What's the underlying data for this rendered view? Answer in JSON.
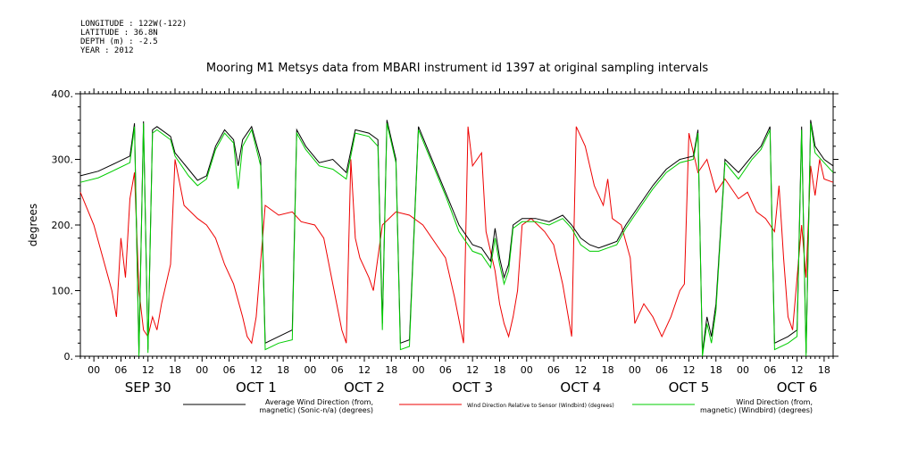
{
  "meta": {
    "longitude": "LONGITUDE : 122W(-122)",
    "latitude": "LATITUDE : 36.8N",
    "depth": "DEPTH (m) : -2.5",
    "year": "YEAR : 2012"
  },
  "chart_data": {
    "type": "line",
    "title": "Mooring M1 Metsys data from MBARI instrument id 1397 at original sampling intervals",
    "ylabel": "degrees",
    "ylim": [
      0,
      400
    ],
    "yticks": [
      "0.",
      "100.",
      "200.",
      "300.",
      "400."
    ],
    "xlim_hours": [
      -3,
      164
    ],
    "hour_tick_labels": [
      "00",
      "06",
      "12",
      "18",
      "00",
      "06",
      "12",
      "18",
      "00",
      "06",
      "12",
      "18",
      "00",
      "06",
      "12",
      "18",
      "00",
      "06",
      "12",
      "18",
      "00",
      "06",
      "12",
      "18",
      "00",
      "06",
      "12",
      "18"
    ],
    "day_labels": [
      "SEP 30",
      "OCT  1",
      "OCT  2",
      "OCT  3",
      "OCT  4",
      "OCT  5",
      "OCT  6"
    ],
    "series": [
      {
        "name": "Average Wind Direction (from, magnetic) (Sonic-n/a) (degrees)",
        "legend_lines": [
          "Average Wind Direction (from,",
          "magnetic) (Sonic-n/a) (degrees)"
        ],
        "color": "#000000",
        "points": [
          [
            -3,
            275
          ],
          [
            1,
            282
          ],
          [
            5,
            295
          ],
          [
            8,
            305
          ],
          [
            9,
            355
          ],
          [
            10,
            5
          ],
          [
            11,
            358
          ],
          [
            12,
            10
          ],
          [
            13,
            345
          ],
          [
            14,
            350
          ],
          [
            17,
            335
          ],
          [
            18,
            310
          ],
          [
            21,
            285
          ],
          [
            23,
            268
          ],
          [
            25,
            275
          ],
          [
            27,
            320
          ],
          [
            29,
            345
          ],
          [
            31,
            330
          ],
          [
            32,
            290
          ],
          [
            33,
            330
          ],
          [
            35,
            350
          ],
          [
            37,
            300
          ],
          [
            38,
            20
          ],
          [
            41,
            30
          ],
          [
            44,
            40
          ],
          [
            45,
            345
          ],
          [
            47,
            320
          ],
          [
            50,
            295
          ],
          [
            53,
            300
          ],
          [
            56,
            280
          ],
          [
            58,
            345
          ],
          [
            61,
            340
          ],
          [
            63,
            330
          ],
          [
            64,
            50
          ],
          [
            65,
            360
          ],
          [
            67,
            300
          ],
          [
            68,
            20
          ],
          [
            70,
            25
          ],
          [
            72,
            350
          ],
          [
            75,
            300
          ],
          [
            78,
            250
          ],
          [
            81,
            200
          ],
          [
            84,
            170
          ],
          [
            86,
            165
          ],
          [
            88,
            145
          ],
          [
            89,
            195
          ],
          [
            90,
            150
          ],
          [
            91,
            120
          ],
          [
            92,
            140
          ],
          [
            93,
            200
          ],
          [
            95,
            210
          ],
          [
            98,
            210
          ],
          [
            101,
            205
          ],
          [
            104,
            215
          ],
          [
            106,
            200
          ],
          [
            108,
            180
          ],
          [
            110,
            170
          ],
          [
            112,
            165
          ],
          [
            114,
            170
          ],
          [
            116,
            175
          ],
          [
            118,
            200
          ],
          [
            121,
            230
          ],
          [
            124,
            260
          ],
          [
            127,
            285
          ],
          [
            130,
            300
          ],
          [
            133,
            305
          ],
          [
            134,
            345
          ],
          [
            135,
            5
          ],
          [
            136,
            60
          ],
          [
            137,
            30
          ],
          [
            138,
            80
          ],
          [
            140,
            300
          ],
          [
            143,
            280
          ],
          [
            146,
            305
          ],
          [
            148,
            320
          ],
          [
            150,
            350
          ],
          [
            151,
            20
          ],
          [
            154,
            30
          ],
          [
            156,
            40
          ],
          [
            157,
            350
          ],
          [
            158,
            5
          ],
          [
            159,
            360
          ],
          [
            160,
            320
          ],
          [
            162,
            300
          ],
          [
            164,
            290
          ]
        ]
      },
      {
        "name": "Wind Direction Relative to Sensor (Windbird) (degrees)",
        "legend_lines": [
          "Wind Direction Relative to Sensor (Windbird) (degrees)"
        ],
        "color": "#ee0000",
        "points": [
          [
            -3,
            250
          ],
          [
            0,
            200
          ],
          [
            2,
            150
          ],
          [
            4,
            100
          ],
          [
            5,
            60
          ],
          [
            6,
            180
          ],
          [
            7,
            120
          ],
          [
            8,
            240
          ],
          [
            9,
            280
          ],
          [
            10,
            100
          ],
          [
            11,
            40
          ],
          [
            12,
            30
          ],
          [
            13,
            60
          ],
          [
            14,
            40
          ],
          [
            15,
            80
          ],
          [
            17,
            140
          ],
          [
            18,
            300
          ],
          [
            20,
            230
          ],
          [
            23,
            210
          ],
          [
            25,
            200
          ],
          [
            27,
            180
          ],
          [
            29,
            140
          ],
          [
            31,
            110
          ],
          [
            33,
            60
          ],
          [
            34,
            30
          ],
          [
            35,
            20
          ],
          [
            36,
            60
          ],
          [
            38,
            230
          ],
          [
            41,
            215
          ],
          [
            44,
            220
          ],
          [
            46,
            205
          ],
          [
            49,
            200
          ],
          [
            51,
            180
          ],
          [
            53,
            110
          ],
          [
            55,
            40
          ],
          [
            56,
            20
          ],
          [
            57,
            300
          ],
          [
            58,
            180
          ],
          [
            59,
            150
          ],
          [
            61,
            120
          ],
          [
            62,
            100
          ],
          [
            64,
            200
          ],
          [
            67,
            220
          ],
          [
            70,
            215
          ],
          [
            73,
            200
          ],
          [
            76,
            170
          ],
          [
            78,
            150
          ],
          [
            80,
            90
          ],
          [
            82,
            20
          ],
          [
            83,
            350
          ],
          [
            84,
            290
          ],
          [
            86,
            310
          ],
          [
            87,
            190
          ],
          [
            89,
            130
          ],
          [
            90,
            80
          ],
          [
            91,
            50
          ],
          [
            92,
            30
          ],
          [
            93,
            60
          ],
          [
            94,
            100
          ],
          [
            95,
            200
          ],
          [
            97,
            210
          ],
          [
            100,
            190
          ],
          [
            102,
            170
          ],
          [
            104,
            110
          ],
          [
            106,
            30
          ],
          [
            107,
            350
          ],
          [
            109,
            320
          ],
          [
            111,
            260
          ],
          [
            113,
            230
          ],
          [
            114,
            270
          ],
          [
            115,
            210
          ],
          [
            117,
            200
          ],
          [
            119,
            150
          ],
          [
            120,
            50
          ],
          [
            122,
            80
          ],
          [
            124,
            60
          ],
          [
            126,
            30
          ],
          [
            128,
            60
          ],
          [
            130,
            100
          ],
          [
            131,
            110
          ],
          [
            132,
            340
          ],
          [
            134,
            280
          ],
          [
            136,
            300
          ],
          [
            138,
            250
          ],
          [
            140,
            270
          ],
          [
            143,
            240
          ],
          [
            145,
            250
          ],
          [
            147,
            220
          ],
          [
            149,
            210
          ],
          [
            151,
            190
          ],
          [
            152,
            260
          ],
          [
            153,
            150
          ],
          [
            154,
            60
          ],
          [
            155,
            40
          ],
          [
            157,
            200
          ],
          [
            158,
            120
          ],
          [
            159,
            290
          ],
          [
            160,
            245
          ],
          [
            161,
            300
          ],
          [
            162,
            270
          ],
          [
            164,
            265
          ]
        ]
      },
      {
        "name": "Wind Direction (from, magnetic) (Windbird) (degrees)",
        "legend_lines": [
          "Wind Direction (from,",
          "magnetic) (Windbird) (degrees)"
        ],
        "color": "#00cc00",
        "points": [
          [
            -3,
            265
          ],
          [
            1,
            272
          ],
          [
            5,
            285
          ],
          [
            8,
            295
          ],
          [
            9,
            350
          ],
          [
            10,
            0
          ],
          [
            11,
            355
          ],
          [
            12,
            5
          ],
          [
            13,
            340
          ],
          [
            14,
            345
          ],
          [
            17,
            330
          ],
          [
            18,
            305
          ],
          [
            21,
            275
          ],
          [
            23,
            260
          ],
          [
            25,
            270
          ],
          [
            27,
            315
          ],
          [
            29,
            340
          ],
          [
            31,
            325
          ],
          [
            32,
            255
          ],
          [
            33,
            320
          ],
          [
            35,
            345
          ],
          [
            37,
            290
          ],
          [
            38,
            10
          ],
          [
            41,
            20
          ],
          [
            44,
            25
          ],
          [
            45,
            340
          ],
          [
            47,
            315
          ],
          [
            50,
            290
          ],
          [
            53,
            285
          ],
          [
            56,
            270
          ],
          [
            58,
            340
          ],
          [
            61,
            335
          ],
          [
            63,
            320
          ],
          [
            64,
            40
          ],
          [
            65,
            355
          ],
          [
            67,
            295
          ],
          [
            68,
            10
          ],
          [
            70,
            15
          ],
          [
            72,
            345
          ],
          [
            75,
            295
          ],
          [
            78,
            245
          ],
          [
            81,
            190
          ],
          [
            84,
            160
          ],
          [
            86,
            155
          ],
          [
            88,
            135
          ],
          [
            89,
            180
          ],
          [
            90,
            140
          ],
          [
            91,
            110
          ],
          [
            92,
            130
          ],
          [
            93,
            195
          ],
          [
            95,
            205
          ],
          [
            98,
            205
          ],
          [
            101,
            200
          ],
          [
            104,
            210
          ],
          [
            106,
            195
          ],
          [
            108,
            170
          ],
          [
            110,
            160
          ],
          [
            112,
            160
          ],
          [
            114,
            165
          ],
          [
            116,
            170
          ],
          [
            118,
            195
          ],
          [
            121,
            225
          ],
          [
            124,
            255
          ],
          [
            127,
            280
          ],
          [
            130,
            295
          ],
          [
            133,
            300
          ],
          [
            134,
            340
          ],
          [
            135,
            0
          ],
          [
            136,
            50
          ],
          [
            137,
            20
          ],
          [
            138,
            70
          ],
          [
            140,
            295
          ],
          [
            143,
            270
          ],
          [
            146,
            300
          ],
          [
            148,
            315
          ],
          [
            150,
            345
          ],
          [
            151,
            10
          ],
          [
            154,
            20
          ],
          [
            156,
            30
          ],
          [
            157,
            345
          ],
          [
            158,
            0
          ],
          [
            159,
            355
          ],
          [
            160,
            310
          ],
          [
            162,
            295
          ],
          [
            164,
            280
          ]
        ]
      }
    ]
  }
}
